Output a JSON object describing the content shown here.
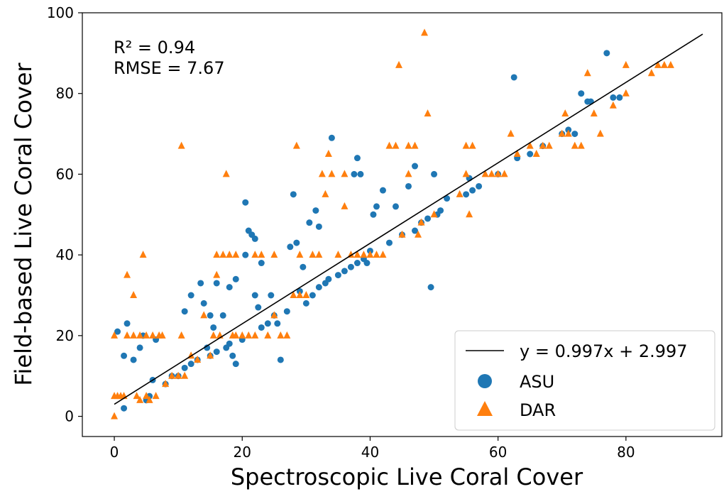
{
  "chart_data": {
    "type": "scatter",
    "xlabel": "Spectroscopic Live Coral Cover",
    "ylabel": "Field-based Live Coral Cover",
    "xlim": [
      -5,
      95
    ],
    "ylim": [
      -5,
      100
    ],
    "x_ticks": [
      0,
      20,
      40,
      60,
      80
    ],
    "y_ticks": [
      0,
      20,
      40,
      60,
      80,
      100
    ],
    "grid": false,
    "legend_position": "bottom-right",
    "annotations": [
      "R² = 0.94",
      "RMSE = 7.67"
    ],
    "fit_line": {
      "label": "y = 0.997x + 2.997",
      "slope": 0.997,
      "intercept": 2.997,
      "x_range": [
        0,
        92
      ],
      "color": "#000000"
    },
    "series": [
      {
        "name": "ASU",
        "marker": "circle",
        "color": "#1f77b4",
        "points": [
          [
            0.5,
            21
          ],
          [
            1.5,
            2
          ],
          [
            1.5,
            15
          ],
          [
            2,
            23
          ],
          [
            3,
            14
          ],
          [
            4,
            17
          ],
          [
            4.5,
            20
          ],
          [
            5,
            4
          ],
          [
            5.5,
            5
          ],
          [
            6,
            9
          ],
          [
            6.5,
            19
          ],
          [
            8,
            8
          ],
          [
            9,
            10
          ],
          [
            10,
            10
          ],
          [
            11,
            12
          ],
          [
            11,
            26
          ],
          [
            12,
            30
          ],
          [
            12,
            13
          ],
          [
            13,
            14
          ],
          [
            13.5,
            33
          ],
          [
            14,
            28
          ],
          [
            14.5,
            17
          ],
          [
            15,
            25
          ],
          [
            15,
            15
          ],
          [
            15.5,
            22
          ],
          [
            16,
            33
          ],
          [
            16,
            16
          ],
          [
            17,
            25
          ],
          [
            17.5,
            17
          ],
          [
            18,
            18
          ],
          [
            18,
            32
          ],
          [
            18.5,
            15
          ],
          [
            19,
            34
          ],
          [
            19,
            13
          ],
          [
            20,
            19
          ],
          [
            20.5,
            40
          ],
          [
            20.5,
            53
          ],
          [
            21,
            46
          ],
          [
            21.5,
            45
          ],
          [
            22,
            44
          ],
          [
            22,
            30
          ],
          [
            22.5,
            27
          ],
          [
            23,
            22
          ],
          [
            23,
            38
          ],
          [
            24,
            23
          ],
          [
            24.5,
            30
          ],
          [
            25,
            25
          ],
          [
            25.5,
            23
          ],
          [
            26,
            14
          ],
          [
            27,
            26
          ],
          [
            27.5,
            42
          ],
          [
            28,
            55
          ],
          [
            28.5,
            43
          ],
          [
            29,
            31
          ],
          [
            29.5,
            37
          ],
          [
            30,
            28
          ],
          [
            30.5,
            48
          ],
          [
            31,
            30
          ],
          [
            31.5,
            51
          ],
          [
            32,
            47
          ],
          [
            32,
            32
          ],
          [
            33,
            33
          ],
          [
            33.5,
            34
          ],
          [
            34,
            69
          ],
          [
            35,
            35
          ],
          [
            36,
            36
          ],
          [
            37,
            37
          ],
          [
            37.5,
            60
          ],
          [
            38,
            64
          ],
          [
            38,
            38
          ],
          [
            38.5,
            60
          ],
          [
            39,
            39
          ],
          [
            39.5,
            38
          ],
          [
            40,
            41
          ],
          [
            40.5,
            50
          ],
          [
            41,
            52
          ],
          [
            42,
            56
          ],
          [
            43,
            43
          ],
          [
            44,
            52
          ],
          [
            45,
            45
          ],
          [
            46,
            57
          ],
          [
            47,
            62
          ],
          [
            47,
            46
          ],
          [
            48,
            48
          ],
          [
            49,
            49
          ],
          [
            49.5,
            32
          ],
          [
            50,
            60
          ],
          [
            50.5,
            50
          ],
          [
            51,
            51
          ],
          [
            52,
            54
          ],
          [
            55,
            55
          ],
          [
            55.5,
            59
          ],
          [
            56,
            56
          ],
          [
            57,
            57
          ],
          [
            60,
            60
          ],
          [
            62.5,
            84
          ],
          [
            63,
            64
          ],
          [
            65,
            65
          ],
          [
            67,
            67
          ],
          [
            70,
            70
          ],
          [
            71,
            71
          ],
          [
            72,
            70
          ],
          [
            73,
            80
          ],
          [
            74,
            78
          ],
          [
            74.5,
            78
          ],
          [
            77,
            90
          ],
          [
            78,
            79
          ],
          [
            79,
            79
          ]
        ]
      },
      {
        "name": "DAR",
        "marker": "triangle",
        "color": "#ff7f0e",
        "points": [
          [
            0,
            0
          ],
          [
            0,
            5
          ],
          [
            0,
            20
          ],
          [
            0.5,
            5
          ],
          [
            1,
            5
          ],
          [
            1.5,
            5
          ],
          [
            2,
            35
          ],
          [
            2,
            20
          ],
          [
            3,
            30
          ],
          [
            3,
            20
          ],
          [
            3.5,
            5
          ],
          [
            4,
            4
          ],
          [
            4,
            20
          ],
          [
            4.5,
            40
          ],
          [
            5,
            5
          ],
          [
            5,
            20
          ],
          [
            5.5,
            4
          ],
          [
            6,
            20
          ],
          [
            6.5,
            5
          ],
          [
            7,
            20
          ],
          [
            7.5,
            20
          ],
          [
            8,
            8
          ],
          [
            9,
            10
          ],
          [
            10,
            10
          ],
          [
            10.5,
            67
          ],
          [
            10.5,
            20
          ],
          [
            11,
            10
          ],
          [
            12,
            15
          ],
          [
            13,
            14
          ],
          [
            14,
            25
          ],
          [
            15,
            15
          ],
          [
            15.5,
            20
          ],
          [
            16,
            35
          ],
          [
            16,
            40
          ],
          [
            16.5,
            20
          ],
          [
            17,
            40
          ],
          [
            17.5,
            60
          ],
          [
            18,
            40
          ],
          [
            18.5,
            20
          ],
          [
            19,
            20
          ],
          [
            19,
            40
          ],
          [
            20,
            20
          ],
          [
            21,
            20
          ],
          [
            22,
            40
          ],
          [
            22,
            20
          ],
          [
            23,
            40
          ],
          [
            24,
            20
          ],
          [
            25,
            25
          ],
          [
            25,
            40
          ],
          [
            26,
            20
          ],
          [
            27,
            20
          ],
          [
            28,
            30
          ],
          [
            28.5,
            67
          ],
          [
            29,
            30
          ],
          [
            29,
            40
          ],
          [
            30,
            30
          ],
          [
            31,
            40
          ],
          [
            32,
            40
          ],
          [
            32.5,
            60
          ],
          [
            33,
            55
          ],
          [
            33.5,
            65
          ],
          [
            34,
            60
          ],
          [
            35,
            40
          ],
          [
            36,
            60
          ],
          [
            36,
            52
          ],
          [
            37,
            40
          ],
          [
            38,
            40
          ],
          [
            39,
            40
          ],
          [
            40,
            40
          ],
          [
            41,
            40
          ],
          [
            42,
            40
          ],
          [
            43,
            67
          ],
          [
            44,
            67
          ],
          [
            44.5,
            87
          ],
          [
            45,
            45
          ],
          [
            46,
            67
          ],
          [
            46,
            60
          ],
          [
            47,
            67
          ],
          [
            47.5,
            45
          ],
          [
            48,
            48
          ],
          [
            48.5,
            95
          ],
          [
            49,
            75
          ],
          [
            50,
            50
          ],
          [
            54,
            55
          ],
          [
            55,
            60
          ],
          [
            55,
            67
          ],
          [
            55.5,
            50
          ],
          [
            56,
            67
          ],
          [
            58,
            60
          ],
          [
            59,
            60
          ],
          [
            60,
            60
          ],
          [
            61,
            60
          ],
          [
            62,
            70
          ],
          [
            63,
            65
          ],
          [
            65,
            67
          ],
          [
            66,
            65
          ],
          [
            67,
            67
          ],
          [
            68,
            67
          ],
          [
            70,
            70
          ],
          [
            70.5,
            75
          ],
          [
            71,
            70
          ],
          [
            72,
            67
          ],
          [
            73,
            67
          ],
          [
            74,
            85
          ],
          [
            75,
            75
          ],
          [
            76,
            70
          ],
          [
            78,
            77
          ],
          [
            80,
            80
          ],
          [
            80,
            87
          ],
          [
            84,
            85
          ],
          [
            85,
            87
          ],
          [
            86,
            87
          ],
          [
            87,
            87
          ]
        ]
      }
    ]
  },
  "legend": {
    "fit_label": "y = 0.997x + 2.997",
    "asu_label": "ASU",
    "dar_label": "DAR"
  },
  "annotation": {
    "r2": "R² = 0.94",
    "rmse": "RMSE = 7.67"
  }
}
